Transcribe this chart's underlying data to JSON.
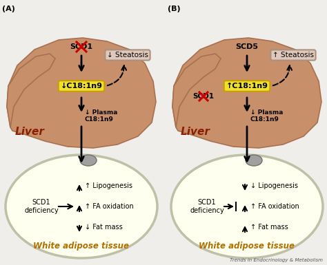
{
  "bg_color": "#f0eeeb",
  "panel_A_label": "(A)",
  "panel_B_label": "(B)",
  "liver_color": "#c8906a",
  "liver_dark": "#a87050",
  "steatosis_box_A": "↓ Steatosis",
  "steatosis_box_B": "↑ Steatosis",
  "steatosis_box_color": "#e0c8bc",
  "c18_box_A": "↓C18:1n9",
  "c18_box_B": "↑C18:1n9",
  "c18_box_color": "#f0e030",
  "c18_box_border": "#c8a000",
  "liver_label": "Liver",
  "wat_label": "White adipose tissue",
  "wat_color": "#fffff0",
  "wat_border": "#c0c0a8",
  "nucleus_color": "#909090",
  "scd1_def_label": "SCD1\ndeficiency",
  "lip_A": "↑ Lipogenesis",
  "lip_B": "↓ Lipogenesis",
  "fa_A": "↑ FA oxidation",
  "fa_B": "↑ FA oxidation",
  "fat_A": "↓ Fat mass",
  "fat_B": "↑ Fat mass",
  "journal_label": "Trends in Endocrinology & Metabolism",
  "scd1_A_label": "SCD1",
  "scd5_B_label": "SCD5",
  "scd1_cross_B": "SCD1",
  "font_color": "#1a1a1a",
  "liver_label_color": "#8B2000",
  "wat_label_color": "#b07000"
}
